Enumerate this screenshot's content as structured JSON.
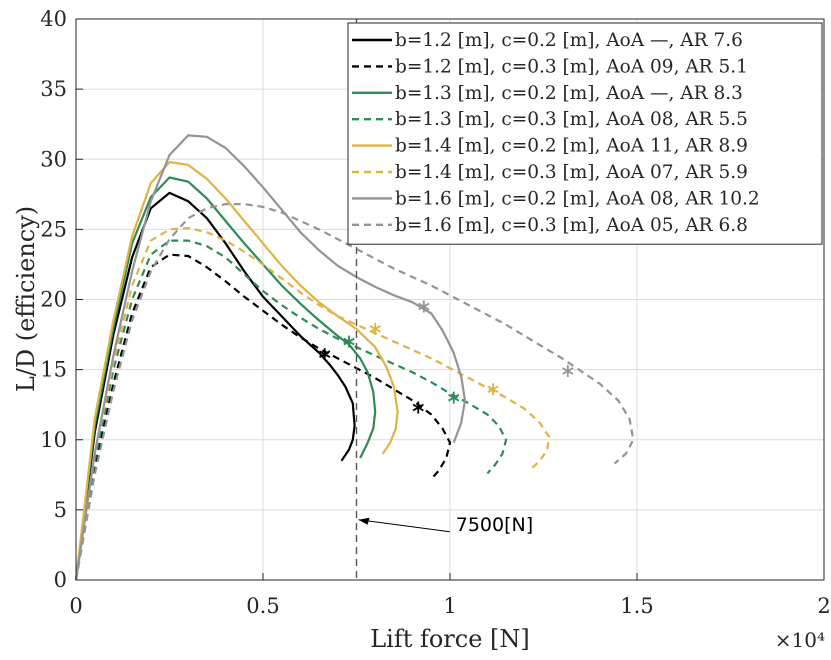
{
  "chart_data": {
    "type": "line",
    "xlabel": "Lift force [N]",
    "ylabel": "L/D (efficiency)",
    "x_multiplier": "×10⁴",
    "x_ticks": [
      "0",
      "0.5",
      "1",
      "1.5",
      "2"
    ],
    "y_ticks": [
      "0",
      "5",
      "10",
      "15",
      "20",
      "25",
      "30",
      "35",
      "40"
    ],
    "xlim": [
      0,
      2
    ],
    "ylim": [
      0,
      40
    ],
    "grid": true,
    "legend_position": "top-right",
    "annotation": {
      "text": "7500[N]",
      "vline_x": 0.75,
      "arrow_to": [
        0.75,
        4.3
      ],
      "text_at": [
        1.01,
        3.5
      ]
    },
    "series": [
      {
        "name": "b=1.2 [m], c=0.2 [m], AoA —, AR 7.6",
        "color": "#000000",
        "dashed": false,
        "x": [
          0,
          0.05,
          0.1,
          0.15,
          0.2,
          0.25,
          0.3,
          0.35,
          0.4,
          0.45,
          0.5,
          0.55,
          0.6,
          0.65,
          0.68,
          0.7,
          0.72,
          0.74,
          0.745,
          0.74,
          0.73,
          0.71
        ],
        "y": [
          0,
          10.5,
          17.5,
          23.0,
          26.5,
          27.6,
          27.0,
          25.8,
          24.0,
          22.0,
          20.2,
          18.8,
          17.4,
          16.2,
          15.3,
          14.6,
          13.8,
          12.6,
          11.0,
          10.0,
          9.3,
          8.5
        ],
        "marker": [
          0.665,
          16.1
        ]
      },
      {
        "name": "b=1.2 [m], c=0.3 [m], AoA 09, AR 5.1",
        "color": "#000000",
        "dashed": true,
        "x": [
          0,
          0.05,
          0.1,
          0.15,
          0.2,
          0.25,
          0.3,
          0.35,
          0.4,
          0.45,
          0.5,
          0.55,
          0.6,
          0.65,
          0.7,
          0.75,
          0.8,
          0.85,
          0.9,
          0.95,
          0.98,
          1.0,
          0.99,
          0.97,
          0.95
        ],
        "y": [
          0,
          8.0,
          14.0,
          19.0,
          22.3,
          23.2,
          23.1,
          22.3,
          21.3,
          20.2,
          19.2,
          18.2,
          17.3,
          16.5,
          15.8,
          15.1,
          14.4,
          13.6,
          12.8,
          11.8,
          10.8,
          9.8,
          8.7,
          7.8,
          7.2
        ],
        "marker": [
          0.915,
          12.3
        ]
      },
      {
        "name": "b=1.3 [m], c=0.2 [m], AoA —, AR 8.3",
        "color": "#2e8b57",
        "dashed": false,
        "x": [
          0,
          0.05,
          0.1,
          0.15,
          0.2,
          0.25,
          0.3,
          0.35,
          0.4,
          0.45,
          0.5,
          0.55,
          0.6,
          0.65,
          0.7,
          0.73,
          0.76,
          0.78,
          0.795,
          0.8,
          0.795,
          0.78,
          0.76
        ],
        "y": [
          0,
          11.0,
          18.0,
          24.0,
          27.3,
          28.7,
          28.4,
          27.2,
          25.6,
          24.0,
          22.5,
          21.0,
          19.7,
          18.5,
          17.4,
          16.8,
          15.8,
          14.8,
          13.4,
          12.0,
          10.8,
          9.8,
          8.7
        ],
        "marker": [
          0.73,
          17.0
        ]
      },
      {
        "name": "b=1.3 [m], c=0.3 [m], AoA 08, AR 5.5",
        "color": "#2e8b57",
        "dashed": true,
        "x": [
          0,
          0.05,
          0.1,
          0.15,
          0.2,
          0.25,
          0.3,
          0.35,
          0.4,
          0.45,
          0.5,
          0.55,
          0.6,
          0.65,
          0.7,
          0.75,
          0.8,
          0.85,
          0.9,
          0.95,
          1.0,
          1.05,
          1.1,
          1.13,
          1.15,
          1.14,
          1.12,
          1.1
        ],
        "y": [
          0,
          8.5,
          15.0,
          20.0,
          23.2,
          24.2,
          24.2,
          23.8,
          23.0,
          21.8,
          20.6,
          19.6,
          18.7,
          17.9,
          17.2,
          16.6,
          16.0,
          15.4,
          14.8,
          14.1,
          13.3,
          12.6,
          11.8,
          11.0,
          10.0,
          9.0,
          8.2,
          7.6
        ],
        "marker": [
          1.01,
          13.0
        ]
      },
      {
        "name": "b=1.4 [m], c=0.2 [m], AoA 11, AR 8.9",
        "color": "#e0b343",
        "dashed": false,
        "x": [
          0,
          0.05,
          0.1,
          0.15,
          0.2,
          0.25,
          0.3,
          0.35,
          0.4,
          0.45,
          0.5,
          0.55,
          0.6,
          0.65,
          0.7,
          0.75,
          0.8,
          0.83,
          0.85,
          0.86,
          0.855,
          0.84,
          0.82
        ],
        "y": [
          0,
          11.5,
          18.5,
          24.5,
          28.3,
          29.8,
          29.6,
          28.6,
          27.2,
          25.6,
          24.0,
          22.4,
          21.0,
          19.8,
          18.8,
          17.9,
          16.6,
          15.2,
          13.8,
          12.0,
          10.8,
          9.8,
          9.0
        ],
        "marker": [
          0.8,
          17.9
        ]
      },
      {
        "name": "b=1.4 [m], c=0.3 [m], AoA 07, AR 5.9",
        "color": "#e0b343",
        "dashed": true,
        "x": [
          0,
          0.05,
          0.1,
          0.15,
          0.2,
          0.25,
          0.3,
          0.35,
          0.4,
          0.45,
          0.5,
          0.55,
          0.6,
          0.65,
          0.7,
          0.75,
          0.8,
          0.85,
          0.9,
          0.95,
          1.0,
          1.05,
          1.1,
          1.15,
          1.2,
          1.24,
          1.265,
          1.26,
          1.24,
          1.22
        ],
        "y": [
          0,
          9.0,
          15.5,
          21.0,
          24.2,
          25.0,
          25.1,
          24.8,
          24.2,
          23.4,
          22.5,
          21.5,
          20.5,
          19.6,
          18.8,
          18.2,
          17.6,
          17.0,
          16.4,
          15.8,
          15.1,
          14.4,
          13.7,
          13.0,
          12.2,
          11.2,
          10.2,
          9.3,
          8.5,
          8.0
        ],
        "marker": [
          1.115,
          13.6
        ]
      },
      {
        "name": "b=1.6 [m], c=0.2 [m], AoA 08, AR 10.2",
        "color": "#949494",
        "dashed": false,
        "x": [
          0,
          0.05,
          0.1,
          0.15,
          0.2,
          0.25,
          0.3,
          0.35,
          0.4,
          0.45,
          0.5,
          0.55,
          0.6,
          0.65,
          0.7,
          0.75,
          0.8,
          0.85,
          0.9,
          0.95,
          0.98,
          1.01,
          1.03,
          1.04,
          1.03,
          1.01
        ],
        "y": [
          0,
          9.0,
          16.0,
          22.0,
          27.0,
          30.3,
          31.7,
          31.6,
          30.8,
          29.5,
          28.0,
          26.4,
          24.8,
          23.5,
          22.4,
          21.6,
          20.9,
          20.3,
          19.8,
          19.0,
          17.8,
          16.2,
          14.5,
          12.8,
          11.2,
          9.8
        ],
        "marker": [
          0.93,
          19.5
        ]
      },
      {
        "name": "b=1.6 [m], c=0.3 [m], AoA 05, AR 6.8",
        "color": "#949494",
        "dashed": true,
        "x": [
          0,
          0.05,
          0.1,
          0.15,
          0.2,
          0.25,
          0.3,
          0.35,
          0.4,
          0.45,
          0.5,
          0.55,
          0.6,
          0.65,
          0.7,
          0.75,
          0.8,
          0.85,
          0.9,
          0.95,
          1.0,
          1.05,
          1.1,
          1.15,
          1.2,
          1.25,
          1.3,
          1.35,
          1.4,
          1.45,
          1.48,
          1.49,
          1.47,
          1.44
        ],
        "y": [
          0,
          7.5,
          13.5,
          18.5,
          22.0,
          24.3,
          25.8,
          26.5,
          26.8,
          26.8,
          26.6,
          26.2,
          25.6,
          25.0,
          24.3,
          23.6,
          22.9,
          22.2,
          21.6,
          21.0,
          20.3,
          19.6,
          18.9,
          18.2,
          17.4,
          16.6,
          15.8,
          14.9,
          14.0,
          12.8,
          11.5,
          10.0,
          9.0,
          8.3
        ],
        "marker": [
          1.315,
          14.9
        ]
      }
    ]
  }
}
